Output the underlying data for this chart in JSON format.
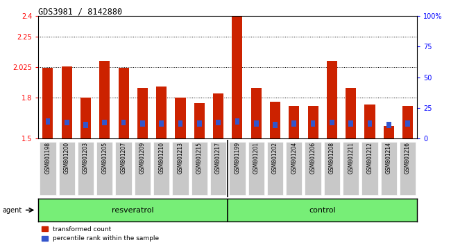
{
  "title": "GDS3981 / 8142880",
  "samples": [
    "GSM801198",
    "GSM801200",
    "GSM801203",
    "GSM801205",
    "GSM801207",
    "GSM801209",
    "GSM801210",
    "GSM801213",
    "GSM801215",
    "GSM801217",
    "GSM801199",
    "GSM801201",
    "GSM801202",
    "GSM801204",
    "GSM801206",
    "GSM801208",
    "GSM801211",
    "GSM801212",
    "GSM801214",
    "GSM801216"
  ],
  "transformed_count": [
    2.02,
    2.03,
    1.8,
    2.07,
    2.02,
    1.87,
    1.88,
    1.8,
    1.76,
    1.83,
    2.48,
    1.87,
    1.77,
    1.74,
    1.74,
    2.07,
    1.87,
    1.75,
    1.59,
    1.74
  ],
  "percentile_rank": [
    14,
    13,
    11,
    13,
    13,
    12,
    12,
    12,
    12,
    13,
    14,
    12,
    11,
    12,
    12,
    13,
    12,
    12,
    11,
    12
  ],
  "groups": [
    {
      "name": "resveratrol",
      "start": 0,
      "end": 9
    },
    {
      "name": "control",
      "start": 10,
      "end": 19
    }
  ],
  "bar_color": "#cc2200",
  "blue_color": "#3355cc",
  "ylim_left": [
    1.5,
    2.4
  ],
  "ylim_right": [
    0,
    100
  ],
  "yticks_left": [
    1.5,
    1.8,
    2.025,
    2.25,
    2.4
  ],
  "ytick_labels_left": [
    "1.5",
    "1.8",
    "2.025",
    "2.25",
    "2.4"
  ],
  "yticks_right": [
    0,
    25,
    50,
    75,
    100
  ],
  "ytick_labels_right": [
    "0",
    "25",
    "50",
    "75",
    "100%"
  ],
  "grid_values": [
    1.8,
    2.025,
    2.25
  ],
  "background_color": "#ffffff",
  "bar_bg_color": "#c8c8c8",
  "group_bg_color": "#77ee77",
  "bar_width": 0.55,
  "resveratrol_count": 10,
  "control_count": 10
}
